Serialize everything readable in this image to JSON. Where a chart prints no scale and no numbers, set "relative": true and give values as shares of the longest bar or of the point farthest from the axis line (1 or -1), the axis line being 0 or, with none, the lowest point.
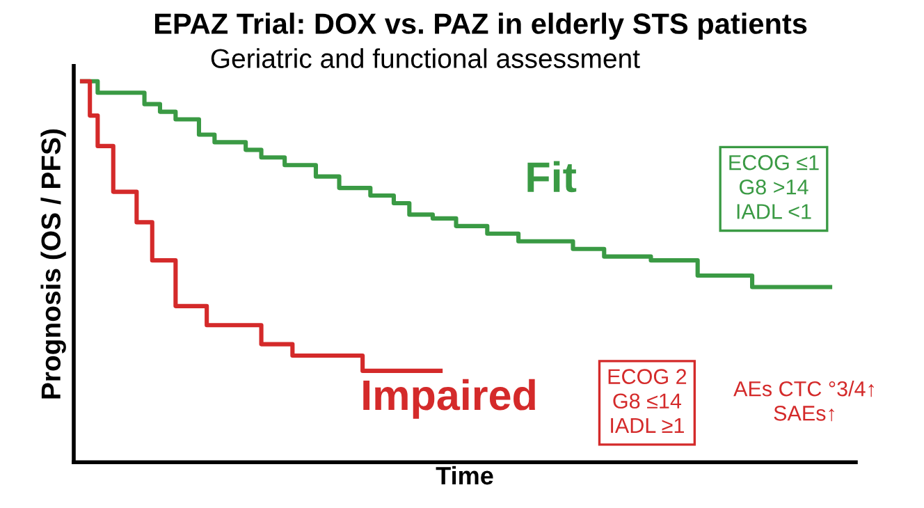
{
  "chart_data": {
    "type": "step",
    "title": "EPAZ Trial: DOX vs. PAZ in elderly STS patients",
    "subtitle": "Geriatric and functional assessment",
    "xlabel": "Time",
    "ylabel": "Prognosis (OS / PFS)",
    "relative": true,
    "grid": false,
    "marker": "none",
    "line_style": "solid",
    "categories": [
      null,
      null,
      null,
      null,
      null,
      null,
      null,
      null,
      null,
      null,
      null,
      null,
      null,
      null,
      null,
      null,
      null,
      null,
      null,
      null,
      null,
      null,
      null,
      null,
      null,
      null,
      null,
      null,
      null,
      null,
      null,
      null,
      null,
      null,
      null,
      null,
      null,
      null,
      null,
      null,
      null,
      null,
      null,
      null,
      null,
      null,
      null,
      null,
      null,
      null,
      null,
      null,
      null,
      null,
      null,
      null,
      null,
      null,
      null,
      null,
      null,
      null,
      null,
      null,
      null,
      null,
      null,
      null,
      null,
      null,
      null,
      null,
      null,
      null,
      null,
      null,
      null,
      null,
      null,
      null,
      null,
      null,
      null,
      null,
      null,
      null,
      null,
      null,
      null,
      null,
      null,
      null,
      null,
      null,
      null,
      null,
      null
    ],
    "series": [
      {
        "name": "Fit",
        "color": "#3a9a44",
        "values": [
          1.0,
          1.0,
          0.97,
          0.97,
          0.97,
          0.97,
          0.97,
          0.97,
          0.94,
          0.94,
          0.92,
          0.92,
          0.9,
          0.9,
          0.9,
          0.86,
          0.86,
          0.84,
          0.84,
          0.84,
          0.84,
          0.82,
          0.82,
          0.8,
          0.8,
          0.8,
          0.78,
          0.78,
          0.78,
          0.78,
          0.75,
          0.75,
          0.75,
          0.72,
          0.72,
          0.72,
          0.72,
          0.7,
          0.7,
          0.7,
          0.68,
          0.68,
          0.65,
          0.65,
          0.65,
          0.64,
          0.64,
          0.64,
          0.62,
          0.62,
          0.62,
          0.62,
          0.6,
          0.6,
          0.6,
          0.6,
          0.58,
          0.58,
          0.58,
          0.58,
          0.58,
          0.58,
          0.58,
          0.56,
          0.56,
          0.56,
          0.56,
          0.54,
          0.54,
          0.54,
          0.54,
          0.54,
          0.54,
          0.53,
          0.53,
          0.53,
          0.53,
          0.53,
          0.53,
          0.49,
          0.49,
          0.49,
          0.49,
          0.49,
          0.49,
          0.49,
          0.46,
          0.46,
          0.46,
          0.46,
          0.46,
          0.46,
          0.46,
          0.46,
          0.46,
          0.46,
          0.46
        ]
      },
      {
        "name": "Impaired",
        "color": "#d42a2a",
        "values": [
          1.0,
          0.91,
          0.83,
          0.83,
          0.71,
          0.71,
          0.71,
          0.63,
          0.63,
          0.53,
          0.53,
          0.53,
          0.41,
          0.41,
          0.41,
          0.41,
          0.36,
          0.36,
          0.36,
          0.36,
          0.36,
          0.36,
          0.36,
          0.31,
          0.31,
          0.31,
          0.31,
          0.28,
          0.28,
          0.28,
          0.28,
          0.28,
          0.28,
          0.28,
          0.28,
          0.28,
          0.24,
          0.24,
          0.24,
          0.24,
          0.24,
          0.24,
          0.24,
          0.24,
          0.24,
          0.24,
          0.24,
          null,
          null,
          null,
          null,
          null,
          null,
          null,
          null,
          null,
          null,
          null,
          null,
          null,
          null,
          null,
          null,
          null,
          null,
          null,
          null,
          null,
          null,
          null,
          null,
          null,
          null,
          null,
          null,
          null,
          null,
          null,
          null,
          null,
          null,
          null,
          null,
          null,
          null,
          null,
          null,
          null,
          null,
          null,
          null,
          null,
          null,
          null,
          null,
          null,
          null
        ]
      }
    ],
    "annotations": [
      "ECOG ≤1\nG8 >14\nIADL <1",
      "ECOG 2\nG8 ≤14\nIADL ≥1",
      "AEs CTC °3/4↑\nSAEs↑"
    ]
  }
}
